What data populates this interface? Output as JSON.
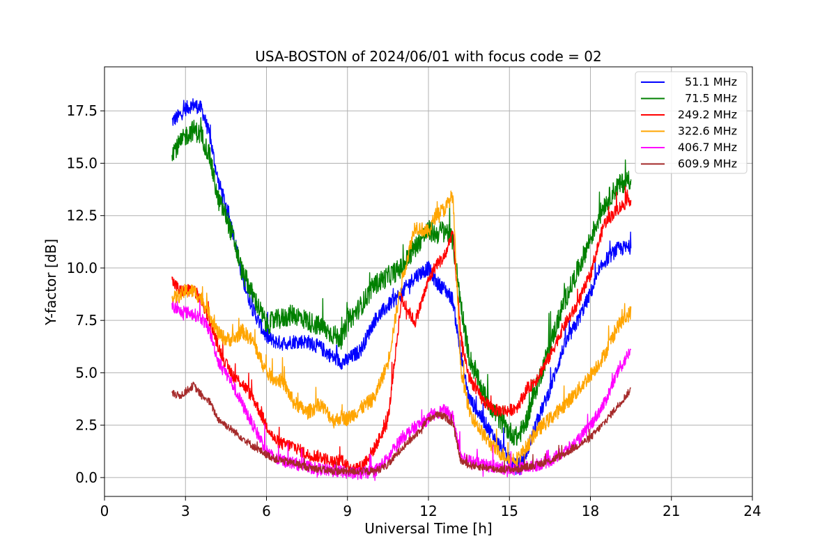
{
  "chart_data": {
    "type": "line",
    "title": "USA-BOSTON of 2024/06/01 with focus code = 02",
    "xlabel": "Universal Time [h]",
    "ylabel": "Y-factor [dB]",
    "xlim": [
      0,
      24
    ],
    "ylim": [
      -0.9,
      19.6
    ],
    "xticks": [
      0,
      3,
      6,
      9,
      12,
      15,
      18,
      21,
      24
    ],
    "xtick_labels": [
      "0",
      "3",
      "6",
      "9",
      "12",
      "15",
      "18",
      "21",
      "24"
    ],
    "yticks": [
      0,
      2.5,
      5,
      7.5,
      10,
      12.5,
      15,
      17.5
    ],
    "ytick_labels": [
      "0.0",
      "2.5",
      "5.0",
      "7.5",
      "10.0",
      "12.5",
      "15.0",
      "17.5"
    ],
    "grid": true,
    "legend_position": "top-right",
    "series": [
      {
        "name": "51.1 MHz",
        "color": "#0000ff",
        "noise": 0.35,
        "x": [
          2.5,
          2.8,
          3.0,
          3.3,
          3.6,
          3.9,
          4.2,
          4.5,
          4.8,
          5.1,
          5.5,
          6.0,
          6.3,
          6.6,
          7.0,
          7.5,
          8.0,
          8.5,
          8.8,
          9.0,
          9.5,
          10.0,
          10.5,
          11.0,
          11.5,
          12.0,
          12.3,
          12.6,
          12.9,
          13.2,
          13.5,
          14.0,
          14.5,
          15.0,
          15.3,
          15.6,
          16.0,
          16.5,
          17.0,
          17.5,
          18.0,
          18.5,
          19.0,
          19.5
        ],
        "y": [
          17.0,
          17.3,
          17.6,
          17.8,
          17.6,
          16.3,
          14.2,
          13.0,
          11.5,
          9.5,
          8.0,
          6.7,
          6.5,
          6.4,
          6.5,
          6.5,
          6.2,
          5.7,
          5.5,
          5.6,
          6.1,
          7.5,
          8.2,
          8.8,
          9.6,
          10.0,
          9.3,
          9.0,
          8.5,
          5.8,
          3.8,
          2.8,
          1.8,
          0.8,
          0.5,
          1.1,
          2.6,
          4.2,
          6.2,
          7.4,
          8.8,
          10.3,
          10.9,
          11.0
        ]
      },
      {
        "name": "71.5 MHz",
        "color": "#008000",
        "noise": 0.5,
        "x": [
          2.5,
          2.8,
          3.0,
          3.3,
          3.6,
          3.9,
          4.2,
          4.5,
          4.8,
          5.1,
          5.5,
          6.0,
          6.3,
          6.6,
          7.0,
          7.5,
          8.0,
          8.5,
          8.8,
          9.0,
          9.5,
          10.0,
          10.5,
          11.0,
          11.5,
          12.0,
          12.3,
          12.6,
          12.9,
          13.2,
          13.5,
          14.0,
          14.5,
          15.0,
          15.3,
          15.6,
          16.0,
          16.5,
          17.0,
          17.5,
          18.0,
          18.5,
          19.0,
          19.5
        ],
        "y": [
          15.6,
          15.9,
          16.3,
          16.6,
          16.3,
          15.3,
          13.3,
          12.5,
          11.3,
          9.8,
          8.7,
          7.3,
          7.5,
          7.6,
          7.8,
          7.5,
          7.2,
          6.8,
          6.6,
          7.4,
          8.2,
          9.2,
          9.6,
          10.0,
          11.0,
          11.8,
          11.6,
          11.9,
          11.3,
          8.3,
          5.8,
          4.1,
          3.0,
          2.2,
          1.9,
          2.6,
          4.3,
          6.3,
          8.3,
          9.8,
          11.4,
          13.0,
          13.9,
          14.3
        ]
      },
      {
        "name": "249.2 MHz",
        "color": "#ff0000",
        "noise": 0.3,
        "x": [
          2.5,
          2.8,
          3.0,
          3.3,
          3.6,
          3.9,
          4.2,
          4.5,
          4.8,
          5.1,
          5.5,
          6.0,
          6.3,
          6.6,
          7.0,
          7.5,
          8.0,
          8.5,
          8.8,
          9.0,
          9.5,
          10.0,
          10.5,
          11.0,
          11.5,
          12.0,
          12.3,
          12.6,
          12.9,
          13.2,
          13.5,
          14.0,
          14.5,
          15.0,
          15.3,
          15.6,
          16.0,
          16.5,
          17.0,
          17.5,
          18.0,
          18.5,
          19.0,
          19.5
        ],
        "y": [
          9.4,
          8.9,
          8.9,
          9.0,
          8.4,
          7.5,
          6.3,
          5.4,
          4.8,
          4.5,
          3.8,
          2.5,
          1.8,
          1.6,
          1.5,
          1.1,
          1.0,
          0.7,
          0.9,
          0.5,
          0.5,
          1.4,
          2.7,
          8.5,
          7.4,
          9.4,
          10.2,
          10.5,
          11.8,
          6.7,
          4.8,
          3.7,
          3.2,
          3.2,
          3.4,
          4.1,
          4.7,
          5.8,
          7.2,
          8.2,
          9.7,
          12.1,
          12.8,
          13.3
        ]
      },
      {
        "name": "322.6 MHz",
        "color": "#ffa500",
        "noise": 0.35,
        "x": [
          2.5,
          2.8,
          3.0,
          3.3,
          3.6,
          3.9,
          4.2,
          4.5,
          4.8,
          5.1,
          5.5,
          6.0,
          6.3,
          6.6,
          7.0,
          7.5,
          8.0,
          8.5,
          8.8,
          9.0,
          9.5,
          10.0,
          10.5,
          11.0,
          11.5,
          12.0,
          12.3,
          12.6,
          12.9,
          13.2,
          13.5,
          14.0,
          14.5,
          15.0,
          15.3,
          15.6,
          16.0,
          16.5,
          17.0,
          17.5,
          18.0,
          18.5,
          19.0,
          19.5
        ],
        "y": [
          8.5,
          8.7,
          8.9,
          8.9,
          8.5,
          7.8,
          6.9,
          6.6,
          6.6,
          7.0,
          6.5,
          5.0,
          4.7,
          4.6,
          3.6,
          3.1,
          3.5,
          2.7,
          2.9,
          2.8,
          3.3,
          3.8,
          5.5,
          9.3,
          12.0,
          11.7,
          12.6,
          12.8,
          13.5,
          5.2,
          3.2,
          2.1,
          1.3,
          0.9,
          0.9,
          1.4,
          2.2,
          2.8,
          3.4,
          4.1,
          4.9,
          5.8,
          7.2,
          7.9
        ]
      },
      {
        "name": "406.7 MHz",
        "color": "#ff00ff",
        "noise": 0.3,
        "x": [
          2.5,
          2.8,
          3.0,
          3.3,
          3.6,
          3.9,
          4.2,
          4.5,
          4.8,
          5.1,
          5.5,
          6.0,
          6.3,
          6.6,
          7.0,
          7.5,
          8.0,
          8.5,
          8.8,
          9.0,
          9.5,
          10.0,
          10.5,
          11.0,
          11.5,
          12.0,
          12.3,
          12.6,
          12.9,
          13.2,
          13.5,
          14.0,
          14.5,
          15.0,
          15.3,
          15.6,
          16.0,
          16.5,
          17.0,
          17.5,
          18.0,
          18.5,
          19.0,
          19.5
        ],
        "y": [
          8.2,
          7.9,
          7.9,
          7.8,
          7.6,
          7.0,
          5.6,
          5.0,
          4.3,
          3.5,
          2.5,
          1.3,
          0.9,
          0.8,
          0.7,
          0.5,
          0.4,
          0.3,
          0.3,
          0.2,
          0.2,
          0.3,
          0.9,
          1.9,
          2.4,
          2.8,
          3.1,
          3.2,
          2.9,
          1.1,
          0.8,
          0.6,
          0.5,
          0.4,
          0.4,
          0.5,
          0.6,
          0.8,
          1.2,
          1.7,
          2.5,
          3.5,
          5.0,
          6.1
        ]
      },
      {
        "name": "609.9 MHz",
        "color": "#a52a2a",
        "noise": 0.18,
        "x": [
          2.5,
          2.8,
          3.0,
          3.3,
          3.6,
          3.9,
          4.2,
          4.5,
          4.8,
          5.1,
          5.5,
          6.0,
          6.3,
          6.6,
          7.0,
          7.5,
          8.0,
          8.5,
          8.8,
          9.0,
          9.5,
          10.0,
          10.5,
          11.0,
          11.5,
          12.0,
          12.3,
          12.6,
          12.9,
          13.2,
          13.5,
          14.0,
          14.5,
          15.0,
          15.3,
          15.6,
          16.0,
          16.5,
          17.0,
          17.5,
          18.0,
          18.5,
          19.0,
          19.5
        ],
        "y": [
          4.0,
          3.9,
          4.1,
          4.4,
          3.9,
          3.6,
          2.8,
          2.5,
          2.2,
          1.9,
          1.5,
          1.1,
          0.9,
          0.8,
          0.7,
          0.5,
          0.4,
          0.3,
          0.3,
          0.3,
          0.3,
          0.3,
          0.6,
          1.4,
          2.0,
          2.8,
          3.0,
          2.9,
          2.6,
          0.8,
          0.6,
          0.5,
          0.4,
          0.4,
          0.4,
          0.5,
          0.6,
          0.8,
          1.1,
          1.5,
          1.9,
          2.6,
          3.4,
          4.2
        ]
      }
    ]
  }
}
